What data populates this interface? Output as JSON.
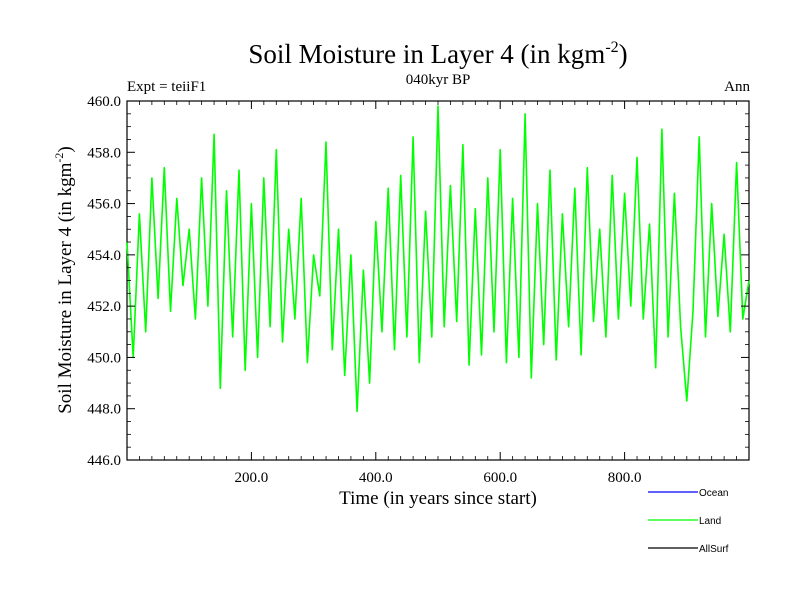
{
  "chart_data": {
    "type": "line",
    "title": "Soil Moisture in Layer 4 (in kgm",
    "title_sup": "-2",
    "title_close": ")",
    "subtitle": "040kyr BP",
    "left_label": "Expt = teiiF1",
    "right_label": "Ann",
    "xlabel": "Time (in years since start)",
    "ylabel": "Soil Moisture in Layer 4 (in kgm",
    "ylabel_sup": "-2",
    "ylabel_close": ")",
    "xlim": [
      0,
      1000
    ],
    "ylim": [
      446,
      460
    ],
    "xticks": [
      200,
      400,
      600,
      800
    ],
    "xtick_labels": [
      "200.0",
      "400.0",
      "600.0",
      "800.0"
    ],
    "yticks": [
      446,
      448,
      450,
      452,
      454,
      456,
      458,
      460
    ],
    "ytick_labels": [
      "446.0",
      "448.0",
      "450.0",
      "452.0",
      "454.0",
      "456.0",
      "458.0",
      "460.0"
    ],
    "grid": false,
    "legend_position": "bottom-right",
    "legend": [
      {
        "name": "Ocean",
        "color": "#0000ff"
      },
      {
        "name": "Land",
        "color": "#00ff00"
      },
      {
        "name": "AllSurf",
        "color": "#000000"
      }
    ],
    "series": [
      {
        "name": "Land",
        "color": "#00ff00",
        "x": [
          0,
          10,
          20,
          30,
          40,
          50,
          60,
          70,
          80,
          90,
          100,
          110,
          120,
          130,
          140,
          150,
          160,
          170,
          180,
          190,
          200,
          210,
          220,
          230,
          240,
          250,
          260,
          270,
          280,
          290,
          300,
          310,
          320,
          330,
          340,
          350,
          360,
          370,
          380,
          390,
          400,
          410,
          420,
          430,
          440,
          450,
          460,
          470,
          480,
          490,
          500,
          510,
          520,
          530,
          540,
          550,
          560,
          570,
          580,
          590,
          600,
          610,
          620,
          630,
          640,
          650,
          660,
          670,
          680,
          690,
          700,
          710,
          720,
          730,
          740,
          750,
          760,
          770,
          780,
          790,
          800,
          810,
          820,
          830,
          840,
          850,
          860,
          870,
          880,
          890,
          900,
          910,
          920,
          930,
          940,
          950,
          960,
          970,
          980,
          990,
          1000
        ],
        "y": [
          454.5,
          450.0,
          455.6,
          451.0,
          457.0,
          452.3,
          457.4,
          451.8,
          456.2,
          452.8,
          455.0,
          451.5,
          457.0,
          452.0,
          458.7,
          448.8,
          456.5,
          450.8,
          457.3,
          449.5,
          456.0,
          450.0,
          457.0,
          451.2,
          458.1,
          450.6,
          455.0,
          451.5,
          456.2,
          449.8,
          454.0,
          452.4,
          458.4,
          450.3,
          455.0,
          449.3,
          454.0,
          447.9,
          453.4,
          449.0,
          455.3,
          451.0,
          456.6,
          450.3,
          457.1,
          450.8,
          458.6,
          449.8,
          455.7,
          450.8,
          459.8,
          451.2,
          456.7,
          451.4,
          458.3,
          449.7,
          455.8,
          450.1,
          457.0,
          451.0,
          458.1,
          449.8,
          456.2,
          450.0,
          459.5,
          449.2,
          456.0,
          450.5,
          457.3,
          449.9,
          455.6,
          451.2,
          456.6,
          450.1,
          457.4,
          451.4,
          455.0,
          450.8,
          457.1,
          451.5,
          456.4,
          452.0,
          457.8,
          451.5,
          455.2,
          449.6,
          458.9,
          450.8,
          456.4,
          451.2,
          448.3,
          451.8,
          458.6,
          450.8,
          456.0,
          451.6,
          454.8,
          451.0,
          457.6,
          451.5,
          453.0
        ]
      }
    ]
  }
}
